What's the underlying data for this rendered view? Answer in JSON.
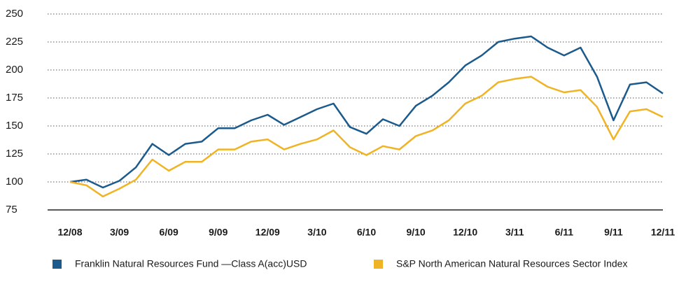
{
  "chart_data": {
    "type": "line",
    "categories": [
      "12/08",
      null,
      null,
      "3/09",
      null,
      null,
      "6/09",
      null,
      null,
      "9/09",
      null,
      null,
      "12/09",
      null,
      null,
      "3/10",
      null,
      null,
      "6/10",
      null,
      null,
      "9/10",
      null,
      null,
      "12/10",
      null,
      null,
      "3/11",
      null,
      null,
      "6/11",
      null,
      null,
      "9/11",
      null,
      null,
      "12/11"
    ],
    "series": [
      {
        "name": "Franklin Natural Resources Fund —Class A(acc)USD",
        "color": "#1b5a8c",
        "values": [
          100,
          102,
          95,
          101,
          113,
          134,
          124,
          134,
          136,
          148,
          148,
          155,
          160,
          151,
          158,
          165,
          170,
          149,
          143,
          156,
          150,
          168,
          177,
          189,
          204,
          213,
          225,
          228,
          230,
          220,
          213,
          220,
          194,
          155,
          187,
          189,
          179
        ]
      },
      {
        "name": "S&P North American Natural Resources Sector Index",
        "color": "#f0b323",
        "values": [
          100,
          97,
          87,
          94,
          102,
          120,
          110,
          118,
          118,
          129,
          129,
          136,
          138,
          129,
          134,
          138,
          146,
          131,
          124,
          132,
          129,
          141,
          146,
          155,
          170,
          177,
          189,
          192,
          194,
          185,
          180,
          182,
          167,
          138,
          163,
          165,
          158
        ]
      }
    ],
    "ylim": [
      75,
      250
    ],
    "yticks": [
      75,
      100,
      125,
      150,
      175,
      200,
      225,
      250
    ],
    "grid": true
  }
}
